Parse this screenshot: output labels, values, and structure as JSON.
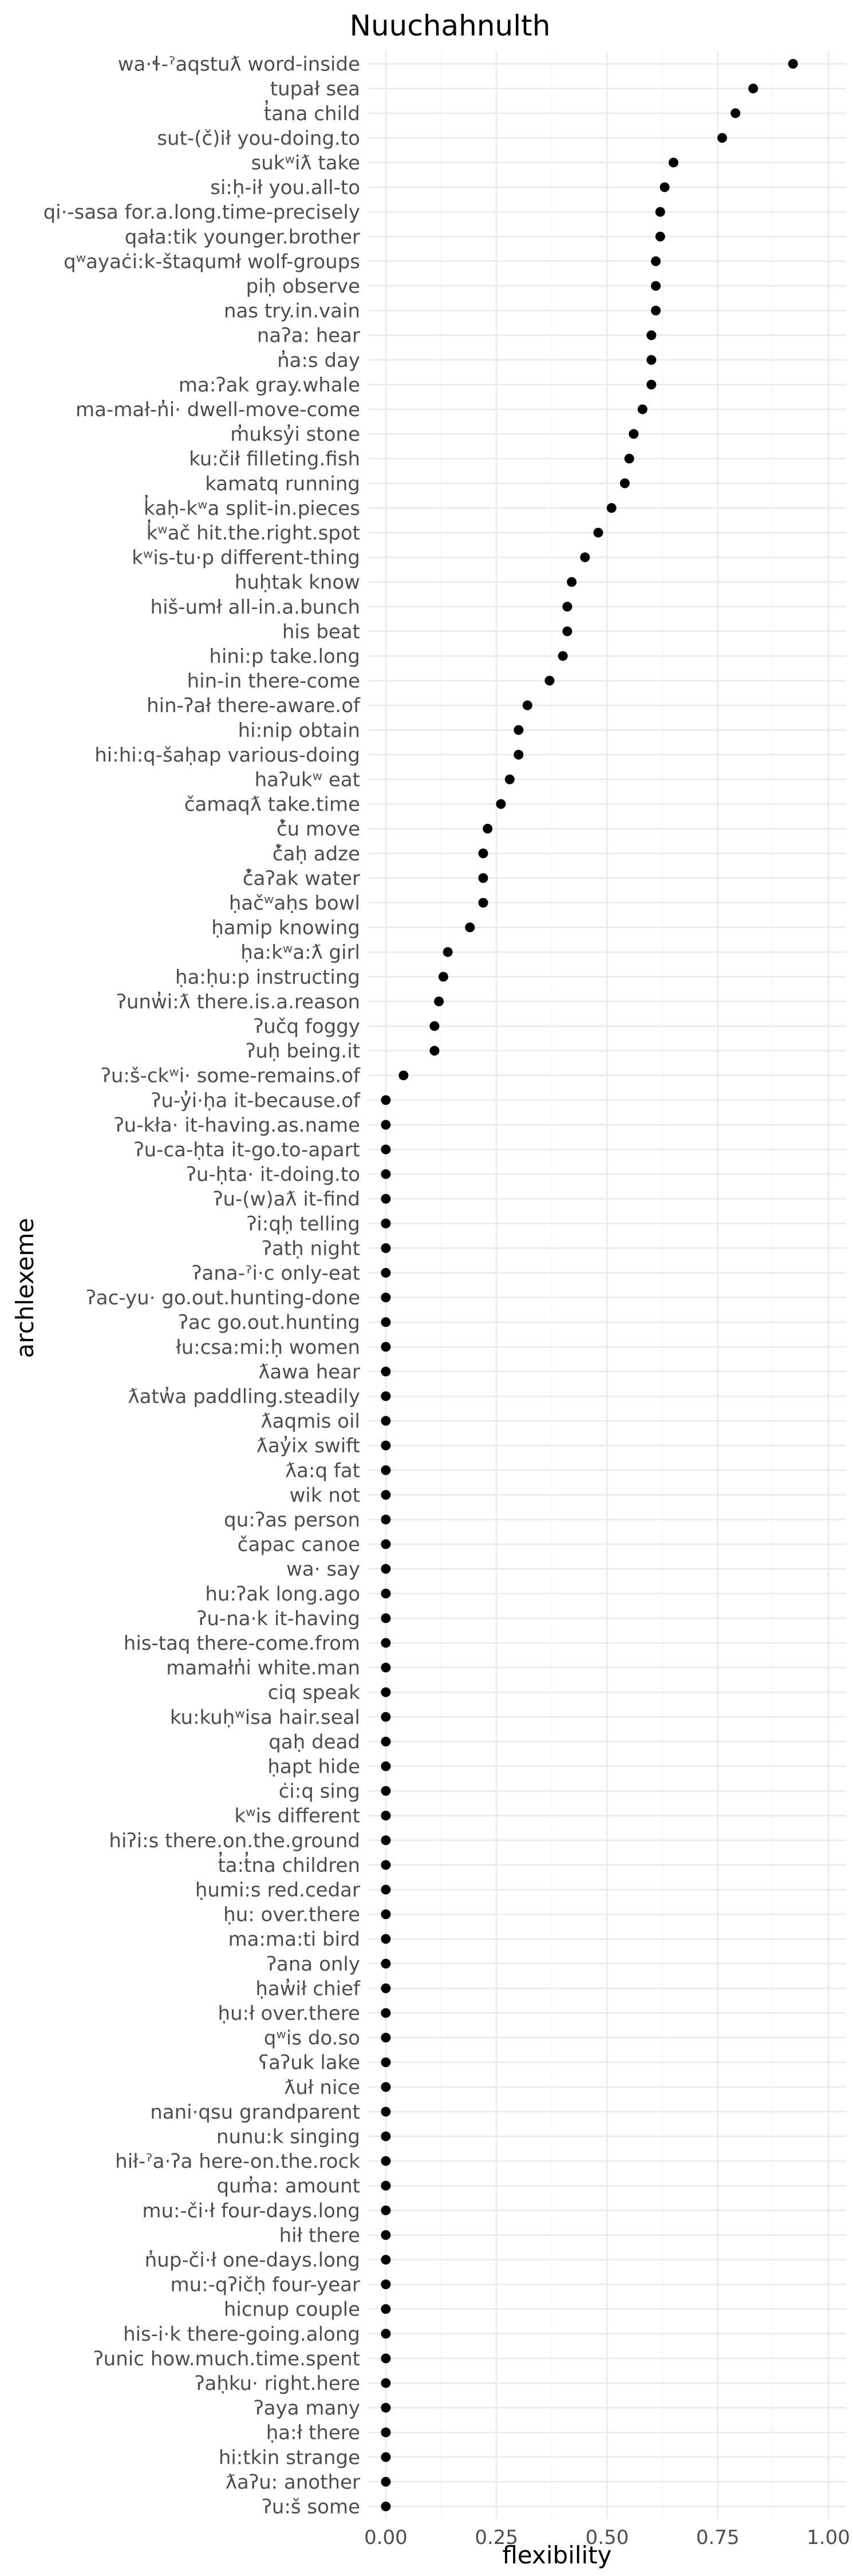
{
  "chart_data": {
    "type": "scatter",
    "title": "Nuuchahnulth",
    "xlabel": "flexibility",
    "ylabel": "archlexeme",
    "xlim": [
      -0.04,
      1.04
    ],
    "xticks": [
      0.0,
      0.25,
      0.5,
      0.75,
      1.0
    ],
    "xtick_labels": [
      "0.00",
      "0.25",
      "0.50",
      "0.75",
      "1.00"
    ],
    "grid": true,
    "legend": "none",
    "point_color": "#000000",
    "points": [
      {
        "label": "wa·ɬ-ˀaqstuƛ   word-inside",
        "value": 0.92
      },
      {
        "label": "tupał   sea",
        "value": 0.83
      },
      {
        "label": "t̓ana   child",
        "value": 0.79
      },
      {
        "label": "sut-(č)ił   you-doing.to",
        "value": 0.76
      },
      {
        "label": "sukʷiƛ   take",
        "value": 0.65
      },
      {
        "label": "si:ḥ-ił   you.all-to",
        "value": 0.63
      },
      {
        "label": "qi·-sasa   for.a.long.time-precisely",
        "value": 0.62
      },
      {
        "label": "qała:tik   younger.brother",
        "value": 0.62
      },
      {
        "label": "qʷayaċi:k-štaqumł   wolf-groups",
        "value": 0.61
      },
      {
        "label": "piḥ   observe",
        "value": 0.61
      },
      {
        "label": "nas   try.in.vain",
        "value": 0.61
      },
      {
        "label": "naʔa:   hear",
        "value": 0.6
      },
      {
        "label": "n̓a:s   day",
        "value": 0.6
      },
      {
        "label": "ma:ʔak   gray.whale",
        "value": 0.6
      },
      {
        "label": "ma-mał-n̓i·   dwell-move-come",
        "value": 0.58
      },
      {
        "label": "m̓uksy̓i   stone",
        "value": 0.56
      },
      {
        "label": "ku:čił   filleting.fish",
        "value": 0.55
      },
      {
        "label": "kamatq   running",
        "value": 0.54
      },
      {
        "label": "k̓aḥ-kʷa   split-in.pieces",
        "value": 0.51
      },
      {
        "label": "k̓ʷač   hit.the.right.spot",
        "value": 0.48
      },
      {
        "label": "kʷis-tu·p   different-thing",
        "value": 0.45
      },
      {
        "label": "huḥtak   know",
        "value": 0.42
      },
      {
        "label": "hiš-umł   all-in.a.bunch",
        "value": 0.41
      },
      {
        "label": "his   beat",
        "value": 0.41
      },
      {
        "label": "hini:p   take.long",
        "value": 0.4
      },
      {
        "label": "hin-in   there-come",
        "value": 0.37
      },
      {
        "label": "hin-ʔał   there-aware.of",
        "value": 0.32
      },
      {
        "label": "hi:nip   obtain",
        "value": 0.3
      },
      {
        "label": "hi:hi:q-šaḥap   various-doing",
        "value": 0.3
      },
      {
        "label": "haʔukʷ   eat",
        "value": 0.28
      },
      {
        "label": "čamaqƛ   take.time",
        "value": 0.26
      },
      {
        "label": "č̓u   move",
        "value": 0.23
      },
      {
        "label": "č̓aḥ   adze",
        "value": 0.22
      },
      {
        "label": "č̓aʔak   water",
        "value": 0.22
      },
      {
        "label": "ḥačʷaḥs   bowl",
        "value": 0.22
      },
      {
        "label": "ḥamip   knowing",
        "value": 0.19
      },
      {
        "label": "ḥa:kʷa:ƛ   girl",
        "value": 0.14
      },
      {
        "label": "ḥa:ḥu:p   instructing",
        "value": 0.13
      },
      {
        "label": "ʔunw̓i:ƛ   there.is.a.reason",
        "value": 0.12
      },
      {
        "label": "ʔučq   foggy",
        "value": 0.11
      },
      {
        "label": "ʔuḥ   being.it",
        "value": 0.11
      },
      {
        "label": "ʔu:š-ckʷi·   some-remains.of",
        "value": 0.04
      },
      {
        "label": "ʔu-y̓i·ḥa   it-because.of",
        "value": 0.0
      },
      {
        "label": "ʔu-kła·   it-having.as.name",
        "value": 0.0
      },
      {
        "label": "ʔu-ca-ḥta   it-go.to-apart",
        "value": 0.0
      },
      {
        "label": "ʔu-ḥta·   it-doing.to",
        "value": 0.0
      },
      {
        "label": "ʔu-(w)aƛ   it-find",
        "value": 0.0
      },
      {
        "label": "ʔi:qḥ   telling",
        "value": 0.0
      },
      {
        "label": "ʔatḥ   night",
        "value": 0.0
      },
      {
        "label": "ʔana-ˀi·c   only-eat",
        "value": 0.0
      },
      {
        "label": "ʔac-yu·   go.out.hunting-done",
        "value": 0.0
      },
      {
        "label": "ʔac   go.out.hunting",
        "value": 0.0
      },
      {
        "label": "łu:csa:mi:ḥ   women",
        "value": 0.0
      },
      {
        "label": "ƛawa   hear",
        "value": 0.0
      },
      {
        "label": "ƛatw̓a   paddling.steadily",
        "value": 0.0
      },
      {
        "label": "ƛaqmis   oil",
        "value": 0.0
      },
      {
        "label": "ƛay̓ix   swift",
        "value": 0.0
      },
      {
        "label": "ƛa:q   fat",
        "value": 0.0
      },
      {
        "label": "wik   not",
        "value": 0.0
      },
      {
        "label": "qu:ʔas   person",
        "value": 0.0
      },
      {
        "label": "čapac   canoe",
        "value": 0.0
      },
      {
        "label": "wa·   say",
        "value": 0.0
      },
      {
        "label": "hu:ʔak   long.ago",
        "value": 0.0
      },
      {
        "label": "ʔu-na·k   it-having",
        "value": 0.0
      },
      {
        "label": "his-taq   there-come.from",
        "value": 0.0
      },
      {
        "label": "mamałn̓i   white.man",
        "value": 0.0
      },
      {
        "label": "ciq   speak",
        "value": 0.0
      },
      {
        "label": "ku:kuḥʷisa   hair.seal",
        "value": 0.0
      },
      {
        "label": "qaḥ   dead",
        "value": 0.0
      },
      {
        "label": "ḥapt   hide",
        "value": 0.0
      },
      {
        "label": "ċi:q   sing",
        "value": 0.0
      },
      {
        "label": "kʷis   different",
        "value": 0.0
      },
      {
        "label": "hiʔi:s   there.on.the.ground",
        "value": 0.0
      },
      {
        "label": "t̓a:t̓na   children",
        "value": 0.0
      },
      {
        "label": "ḥumi:s   red.cedar",
        "value": 0.0
      },
      {
        "label": "ḥu:   over.there",
        "value": 0.0
      },
      {
        "label": "ma:ma:ti   bird",
        "value": 0.0
      },
      {
        "label": "ʔana   only",
        "value": 0.0
      },
      {
        "label": "ḥaw̓ił   chief",
        "value": 0.0
      },
      {
        "label": "ḥu:ł   over.there",
        "value": 0.0
      },
      {
        "label": "qʷis   do.so",
        "value": 0.0
      },
      {
        "label": "ʕaʔuk   lake",
        "value": 0.0
      },
      {
        "label": "ƛuł   nice",
        "value": 0.0
      },
      {
        "label": "nani·qsu   grandparent",
        "value": 0.0
      },
      {
        "label": "nunu:k   singing",
        "value": 0.0
      },
      {
        "label": "hił-ˀa·ʔa   here-on.the.rock",
        "value": 0.0
      },
      {
        "label": "qum̓a:   amount",
        "value": 0.0
      },
      {
        "label": "mu:-či·ł   four-days.long",
        "value": 0.0
      },
      {
        "label": "hił   there",
        "value": 0.0
      },
      {
        "label": "n̓up-či·ł   one-days.long",
        "value": 0.0
      },
      {
        "label": "mu:-qʔičḥ   four-year",
        "value": 0.0
      },
      {
        "label": "hicnup   couple",
        "value": 0.0
      },
      {
        "label": "his-i·k   there-going.along",
        "value": 0.0
      },
      {
        "label": "ʔunic   how.much.time.spent",
        "value": 0.0
      },
      {
        "label": "ʔaḥku·   right.here",
        "value": 0.0
      },
      {
        "label": "ʔaya   many",
        "value": 0.0
      },
      {
        "label": "ḥa:ł   there",
        "value": 0.0
      },
      {
        "label": "hi:tkin   strange",
        "value": 0.0
      },
      {
        "label": "ƛaʔu:   another",
        "value": 0.0
      },
      {
        "label": "ʔu:š   some",
        "value": 0.0
      }
    ]
  }
}
